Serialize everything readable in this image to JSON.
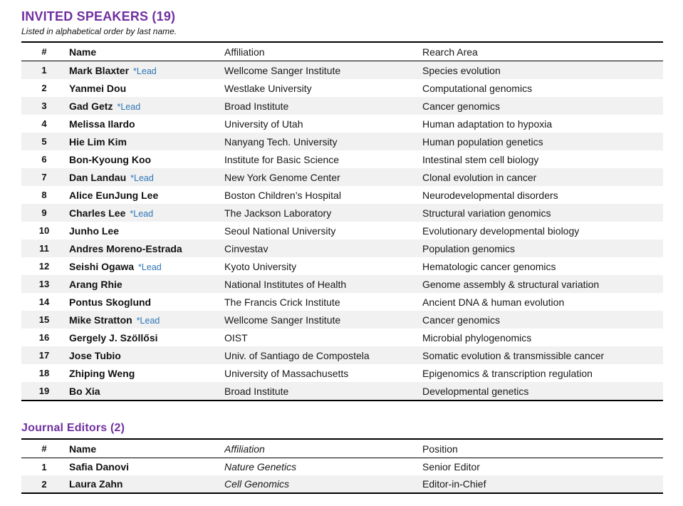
{
  "colors": {
    "title_purple": "#7030A0",
    "lead_blue": "#2E75B6",
    "row_shade": "#F1F1F1",
    "border_black": "#000000"
  },
  "speakers_section": {
    "title": "INVITED SPEAKERS (19)",
    "subtitle": "Listed in alphabetical order by last name.",
    "columns": [
      "#",
      "Name",
      "Affiliation",
      "Rearch Area"
    ],
    "lead_label": "*Lead",
    "rows": [
      {
        "num": "1",
        "name": "Mark Blaxter",
        "lead": true,
        "affiliation": "Wellcome Sanger Institute",
        "area": "Species evolution"
      },
      {
        "num": "2",
        "name": "Yanmei Dou",
        "lead": false,
        "affiliation": "Westlake University",
        "area": "Computational genomics"
      },
      {
        "num": "3",
        "name": "Gad Getz",
        "lead": true,
        "affiliation": "Broad Institute",
        "area": "Cancer genomics"
      },
      {
        "num": "4",
        "name": "Melissa Ilardo",
        "lead": false,
        "affiliation": "University of Utah",
        "area": "Human adaptation to hypoxia"
      },
      {
        "num": "5",
        "name": "Hie Lim Kim",
        "lead": false,
        "affiliation": "Nanyang Tech. University",
        "area": "Human population genetics"
      },
      {
        "num": "6",
        "name": "Bon-Kyoung Koo",
        "lead": false,
        "affiliation": "Institute for Basic Science",
        "area": "Intestinal stem cell biology"
      },
      {
        "num": "7",
        "name": "Dan Landau",
        "lead": true,
        "affiliation": "New York Genome Center",
        "area": "Clonal evolution in cancer"
      },
      {
        "num": "8",
        "name": "Alice EunJung Lee",
        "lead": false,
        "affiliation": "Boston Children’s Hospital",
        "area": "Neurodevelopmental disorders"
      },
      {
        "num": "9",
        "name": "Charles Lee",
        "lead": true,
        "affiliation": "The Jackson Laboratory",
        "area": "Structural variation genomics"
      },
      {
        "num": "10",
        "name": "Junho Lee",
        "lead": false,
        "affiliation": "Seoul National University",
        "area": "Evolutionary developmental biology"
      },
      {
        "num": "11",
        "name": "Andres Moreno-Estrada",
        "lead": false,
        "affiliation": "Cinvestav",
        "area": "Population genomics"
      },
      {
        "num": "12",
        "name": "Seishi Ogawa",
        "lead": true,
        "affiliation": "Kyoto University",
        "area": "Hematologic cancer genomics"
      },
      {
        "num": "13",
        "name": "Arang Rhie",
        "lead": false,
        "affiliation": "National Institutes of Health",
        "area": "Genome assembly & structural variation"
      },
      {
        "num": "14",
        "name": "Pontus Skoglund",
        "lead": false,
        "affiliation": "The Francis Crick Institute",
        "area": "Ancient DNA & human evolution"
      },
      {
        "num": "15",
        "name": "Mike Stratton",
        "lead": true,
        "affiliation": "Wellcome Sanger Institute",
        "area": "Cancer genomics"
      },
      {
        "num": "16",
        "name": "Gergely J. Szöllősi",
        "lead": false,
        "affiliation": "OIST",
        "area": "Microbial phylogenomics"
      },
      {
        "num": "17",
        "name": "Jose Tubio",
        "lead": false,
        "affiliation": "Univ. of Santiago de Compostela",
        "area": "Somatic evolution & transmissible cancer"
      },
      {
        "num": "18",
        "name": "Zhiping Weng",
        "lead": false,
        "affiliation": "University of Massachusetts",
        "area": "Epigenomics & transcription regulation"
      },
      {
        "num": "19",
        "name": "Bo Xia",
        "lead": false,
        "affiliation": "Broad Institute",
        "area": "Developmental genetics"
      }
    ]
  },
  "editors_section": {
    "title": "Journal Editors (2)",
    "columns": [
      "#",
      "Name",
      "Affiliation",
      "Position"
    ],
    "rows": [
      {
        "num": "1",
        "name": "Safia Danovi",
        "affiliation": "Nature Genetics",
        "position": "Senior Editor"
      },
      {
        "num": "2",
        "name": "Laura Zahn",
        "affiliation": "Cell Genomics",
        "position": "Editor-in-Chief"
      }
    ]
  }
}
